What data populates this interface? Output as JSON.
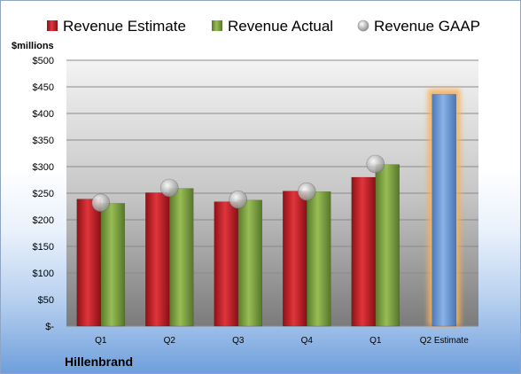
{
  "chart_data": {
    "type": "bar",
    "unit_label": "$millions",
    "company": "Hillenbrand",
    "categories": [
      "Q1",
      "Q2",
      "Q3",
      "Q4",
      "Q1",
      "Q2 Estimate"
    ],
    "y_ticks": [
      "$-",
      "$50",
      "$100",
      "$150",
      "$200",
      "$250",
      "$300",
      "$350",
      "$400",
      "$450",
      "$500"
    ],
    "ylim": [
      0,
      500
    ],
    "grid": true,
    "legend_position": "top",
    "series": [
      {
        "name": "Revenue Estimate",
        "kind": "bar",
        "color": "#c8232a",
        "values": [
          239,
          251,
          234,
          254,
          280,
          null
        ]
      },
      {
        "name": "Revenue Actual",
        "kind": "bar",
        "color": "#7ea13f",
        "values": [
          231,
          259,
          237,
          253,
          304,
          null
        ]
      },
      {
        "name": "Revenue GAAP",
        "kind": "marker",
        "color": "#a9a9a9",
        "values": [
          232,
          260,
          238,
          253,
          305,
          null
        ]
      },
      {
        "name": "",
        "kind": "bar",
        "color": "#6e9ad6",
        "highlight": "#f6b15a",
        "values": [
          null,
          null,
          null,
          null,
          null,
          436
        ]
      }
    ]
  }
}
